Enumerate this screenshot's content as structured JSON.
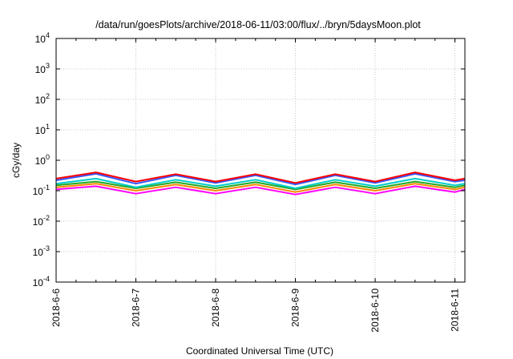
{
  "chart_data": {
    "type": "line",
    "title": "/data/run/goesPlots/archive/2018-06-11/03:00/flux/../bryn/5daysMoon.plot",
    "xlabel": "Coordinated Universal Time (UTC)",
    "ylabel": "cGy/day",
    "y_scale": "log",
    "grid": true,
    "ylim": [
      "1e-4",
      "1e4"
    ],
    "xlim": [
      "2018-06-06 00:00",
      "2018-06-11 03:00"
    ],
    "x_ticks": [
      "2018-6-6",
      "2018-6-7",
      "2018-6-8",
      "2018-6-9",
      "2018-6-10",
      "2018-6-11"
    ],
    "y_ticks": [
      {
        "base": "10",
        "exp": "-4"
      },
      {
        "base": "10",
        "exp": "-3"
      },
      {
        "base": "10",
        "exp": "-2"
      },
      {
        "base": "10",
        "exp": "-1"
      },
      {
        "base": "10",
        "exp": "0"
      },
      {
        "base": "10",
        "exp": "1"
      },
      {
        "base": "10",
        "exp": "2"
      },
      {
        "base": "10",
        "exp": "3"
      },
      {
        "base": "10",
        "exp": "4"
      }
    ],
    "x_dates": [
      "2018-06-06 00:00",
      "2018-06-06 12:00",
      "2018-06-07 00:00",
      "2018-06-07 12:00",
      "2018-06-08 00:00",
      "2018-06-08 12:00",
      "2018-06-09 00:00",
      "2018-06-09 12:00",
      "2018-06-10 00:00",
      "2018-06-10 12:00",
      "2018-06-11 00:00",
      "2018-06-11 03:00"
    ],
    "series": [
      {
        "color": "#ff0000",
        "values": [
          0.25,
          0.4,
          0.2,
          0.35,
          0.2,
          0.35,
          0.18,
          0.35,
          0.2,
          0.4,
          0.22,
          0.25
        ]
      },
      {
        "color": "#3355ff",
        "values": [
          0.22,
          0.36,
          0.17,
          0.32,
          0.18,
          0.32,
          0.16,
          0.32,
          0.18,
          0.36,
          0.2,
          0.22
        ]
      },
      {
        "color": "#00cccc",
        "values": [
          0.17,
          0.25,
          0.13,
          0.23,
          0.14,
          0.23,
          0.12,
          0.23,
          0.14,
          0.25,
          0.15,
          0.17
        ]
      },
      {
        "color": "#22aa22",
        "values": [
          0.15,
          0.2,
          0.12,
          0.19,
          0.12,
          0.19,
          0.11,
          0.19,
          0.12,
          0.2,
          0.13,
          0.15
        ]
      },
      {
        "color": "#ff8800",
        "values": [
          0.13,
          0.17,
          0.1,
          0.16,
          0.1,
          0.16,
          0.09,
          0.16,
          0.1,
          0.17,
          0.11,
          0.13
        ]
      },
      {
        "color": "#ff00ff",
        "values": [
          0.11,
          0.14,
          0.08,
          0.13,
          0.08,
          0.13,
          0.075,
          0.13,
          0.08,
          0.14,
          0.09,
          0.11
        ]
      }
    ]
  }
}
